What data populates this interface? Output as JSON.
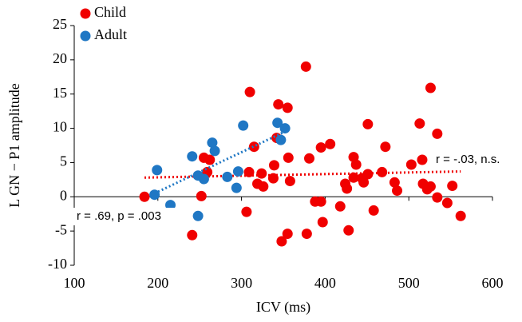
{
  "chart_data": {
    "type": "scatter",
    "x_label": "ICV (ms)",
    "y_label": "L GN − P1 amplitude",
    "xlim": [
      100,
      600
    ],
    "xticks": [
      100,
      200,
      300,
      400,
      500,
      600
    ],
    "ylim": [
      -10,
      25
    ],
    "yticks": [
      -10,
      -5,
      0,
      5,
      10,
      15,
      20,
      25
    ],
    "legend": "top-left",
    "annotations": [
      "r = .69, p = .003",
      "r = -.03, n.s."
    ],
    "series": [
      {
        "name": "Child",
        "color": "#f00000",
        "x": [
          184,
          241,
          252,
          255,
          262,
          259,
          315,
          310,
          306,
          309,
          319,
          324,
          326,
          338,
          339,
          344,
          355,
          342,
          356,
          358,
          355,
          348,
          377,
          378,
          381,
          388,
          395,
          395,
          397,
          406,
          418,
          424,
          426,
          428,
          434,
          437,
          434,
          444,
          446,
          451,
          451,
          458,
          468,
          472,
          483,
          486,
          503,
          513,
          516,
          517,
          522,
          526,
          526,
          534,
          534,
          546,
          552,
          562
        ],
        "values": [
          0,
          -5.6,
          0.1,
          5.7,
          5.4,
          3.6,
          7.3,
          15.3,
          -2.2,
          3.6,
          1.9,
          3.4,
          1.5,
          2.7,
          4.6,
          13.5,
          13,
          8.6,
          5.7,
          2.3,
          -5.4,
          -6.5,
          19,
          -5.4,
          5.6,
          -0.7,
          7.2,
          -0.7,
          -3.7,
          7.7,
          -1.4,
          1.9,
          1.2,
          -4.9,
          5.8,
          4.7,
          2.8,
          2.7,
          2.1,
          3.3,
          10.6,
          -2,
          3.6,
          7.3,
          2.1,
          0.9,
          4.7,
          10.7,
          5.4,
          1.9,
          1.1,
          15.9,
          1.5,
          9.2,
          -0.1,
          -0.9,
          1.6,
          -2.8
        ],
        "trendline": {
          "x": [
            184,
            562
          ],
          "y": [
            2.8,
            3.7
          ]
        }
      },
      {
        "name": "Adult",
        "color": "#1f77c4",
        "x": [
          196,
          199,
          215,
          241,
          248,
          248,
          255,
          265,
          268,
          283,
          294,
          296,
          302,
          343,
          347,
          352
        ],
        "values": [
          0.3,
          3.9,
          -1.2,
          5.9,
          3.1,
          -2.8,
          2.6,
          7.9,
          6.7,
          2.9,
          1.3,
          3.7,
          10.4,
          10.8,
          8.3,
          10
        ],
        "trendline": {
          "x": [
            196,
            350
          ],
          "y": [
            0.5,
            9.4
          ]
        }
      }
    ]
  }
}
